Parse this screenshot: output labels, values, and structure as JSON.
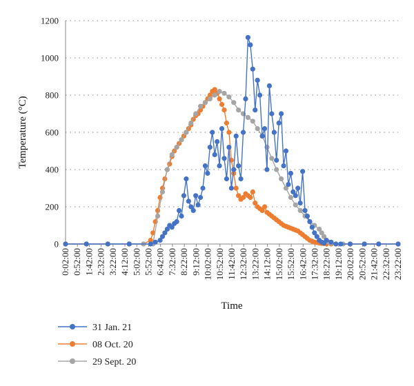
{
  "chart_data": {
    "type": "line",
    "xlabel": "Time",
    "ylabel": "Temperature (°C)",
    "ylim": [
      0,
      1200
    ],
    "xlim_minutes": [
      2,
      1402
    ],
    "y_ticks": [
      0,
      200,
      400,
      600,
      800,
      1000,
      1200
    ],
    "x_tick_labels": [
      "0:02:00",
      "0:52:00",
      "1:42:00",
      "2:32:00",
      "3:22:00",
      "4:12:00",
      "5:02:00",
      "5:52:00",
      "6:42:00",
      "7:32:00",
      "8:22:00",
      "9:12:00",
      "10:02:00",
      "10:52:00",
      "11:42:00",
      "12:32:00",
      "13:22:00",
      "14:12:00",
      "15:02:00",
      "15:52:00",
      "16:42:00",
      "17:32:00",
      "18:22:00",
      "19:12:00",
      "20:02:00",
      "20:52:00",
      "21:42:00",
      "22:32:00",
      "23:22:00"
    ],
    "grid": "horizontal dotted",
    "legend_position": "bottom",
    "series": [
      {
        "name": "31 Jan. 21",
        "color": "#4472C4",
        "x": [
          "0:02",
          "1:30",
          "3:00",
          "4:30",
          "6:00",
          "6:20",
          "6:40",
          "6:50",
          "7:00",
          "7:10",
          "7:20",
          "7:30",
          "7:40",
          "7:50",
          "8:00",
          "8:10",
          "8:20",
          "8:30",
          "8:40",
          "8:50",
          "9:00",
          "9:10",
          "9:20",
          "9:30",
          "9:40",
          "9:50",
          "10:00",
          "10:10",
          "10:20",
          "10:30",
          "10:40",
          "10:50",
          "11:00",
          "11:10",
          "11:20",
          "11:30",
          "11:40",
          "11:50",
          "12:00",
          "12:10",
          "12:20",
          "12:30",
          "12:40",
          "12:50",
          "13:00",
          "13:10",
          "13:20",
          "13:30",
          "13:40",
          "13:50",
          "14:00",
          "14:10",
          "14:20",
          "14:30",
          "14:40",
          "14:50",
          "15:00",
          "15:10",
          "15:20",
          "15:30",
          "15:40",
          "15:50",
          "16:00",
          "16:10",
          "16:20",
          "16:30",
          "16:40",
          "16:50",
          "17:00",
          "17:10",
          "17:20",
          "17:30",
          "17:40",
          "17:50",
          "18:00",
          "18:10",
          "18:20",
          "18:40",
          "19:00",
          "19:20",
          "20:00",
          "21:00",
          "22:00",
          "23:22"
        ],
        "values": [
          0,
          0,
          0,
          0,
          0,
          10,
          20,
          40,
          60,
          80,
          100,
          90,
          110,
          120,
          180,
          150,
          260,
          350,
          230,
          200,
          180,
          260,
          210,
          250,
          300,
          420,
          380,
          520,
          600,
          480,
          550,
          420,
          620,
          460,
          350,
          520,
          300,
          400,
          580,
          420,
          350,
          600,
          780,
          1110,
          1070,
          940,
          720,
          880,
          800,
          580,
          620,
          400,
          850,
          700,
          600,
          450,
          650,
          700,
          420,
          500,
          320,
          380,
          280,
          260,
          300,
          220,
          390,
          180,
          150,
          120,
          90,
          60,
          40,
          20,
          10,
          5,
          20,
          10,
          0,
          0,
          0,
          0,
          0,
          0
        ]
      },
      {
        "name": "08 Oct. 20",
        "color": "#ED7D31",
        "x": [
          "0:02",
          "1:30",
          "3:00",
          "4:30",
          "5:30",
          "6:00",
          "6:10",
          "6:20",
          "6:30",
          "6:40",
          "6:50",
          "7:00",
          "7:10",
          "7:20",
          "7:30",
          "7:40",
          "7:50",
          "8:00",
          "8:10",
          "8:20",
          "8:30",
          "8:40",
          "8:50",
          "9:00",
          "9:10",
          "9:20",
          "9:30",
          "9:40",
          "9:50",
          "10:00",
          "10:10",
          "10:20",
          "10:30",
          "10:40",
          "10:50",
          "11:00",
          "11:10",
          "11:20",
          "11:30",
          "11:40",
          "11:50",
          "12:00",
          "12:10",
          "12:20",
          "12:30",
          "12:40",
          "12:50",
          "13:00",
          "13:10",
          "13:20",
          "13:30",
          "13:40",
          "13:50",
          "14:00",
          "14:10",
          "14:20",
          "14:30",
          "14:40",
          "14:50",
          "15:00",
          "15:10",
          "15:20",
          "15:30",
          "15:40",
          "15:50",
          "16:00",
          "16:10",
          "16:20",
          "16:30",
          "16:40",
          "16:50",
          "17:00",
          "17:10",
          "17:20",
          "17:30",
          "17:40",
          "17:50",
          "18:00",
          "18:10",
          "18:20",
          "18:40",
          "19:00",
          "20:00",
          "21:00",
          "22:00",
          "23:22"
        ],
        "values": [
          0,
          0,
          0,
          0,
          0,
          20,
          60,
          120,
          180,
          250,
          300,
          350,
          400,
          430,
          470,
          500,
          520,
          540,
          560,
          580,
          600,
          620,
          640,
          670,
          690,
          700,
          720,
          740,
          760,
          780,
          800,
          820,
          830,
          810,
          780,
          750,
          720,
          650,
          600,
          450,
          380,
          300,
          260,
          240,
          250,
          270,
          260,
          250,
          280,
          220,
          200,
          190,
          180,
          200,
          170,
          160,
          150,
          140,
          130,
          120,
          110,
          100,
          95,
          90,
          85,
          80,
          75,
          70,
          60,
          50,
          40,
          30,
          20,
          15,
          10,
          8,
          5,
          3,
          2,
          0,
          0,
          0,
          0,
          0,
          0,
          0
        ]
      },
      {
        "name": "29 Sept. 20",
        "color": "#A5A5A5",
        "x": [
          "0:02",
          "1:30",
          "3:00",
          "4:30",
          "5:30",
          "6:10",
          "6:30",
          "6:50",
          "7:10",
          "7:30",
          "7:50",
          "8:10",
          "8:30",
          "8:50",
          "9:10",
          "9:30",
          "9:50",
          "10:10",
          "10:30",
          "10:50",
          "11:10",
          "11:30",
          "11:50",
          "12:10",
          "12:30",
          "12:50",
          "13:10",
          "13:30",
          "13:50",
          "14:10",
          "14:30",
          "14:50",
          "15:10",
          "15:30",
          "15:50",
          "16:10",
          "16:30",
          "16:50",
          "17:10",
          "17:30",
          "17:50",
          "18:00",
          "18:10",
          "18:20",
          "18:30",
          "18:40",
          "19:00",
          "19:30",
          "20:00",
          "21:00",
          "22:00",
          "23:22"
        ],
        "values": [
          0,
          0,
          0,
          0,
          0,
          0,
          150,
          280,
          400,
          480,
          520,
          560,
          600,
          650,
          700,
          740,
          760,
          780,
          800,
          820,
          810,
          790,
          760,
          720,
          700,
          680,
          660,
          620,
          580,
          520,
          460,
          400,
          350,
          300,
          250,
          210,
          180,
          150,
          120,
          100,
          80,
          60,
          40,
          20,
          10,
          5,
          0,
          0,
          0,
          0,
          0,
          0
        ]
      }
    ]
  }
}
